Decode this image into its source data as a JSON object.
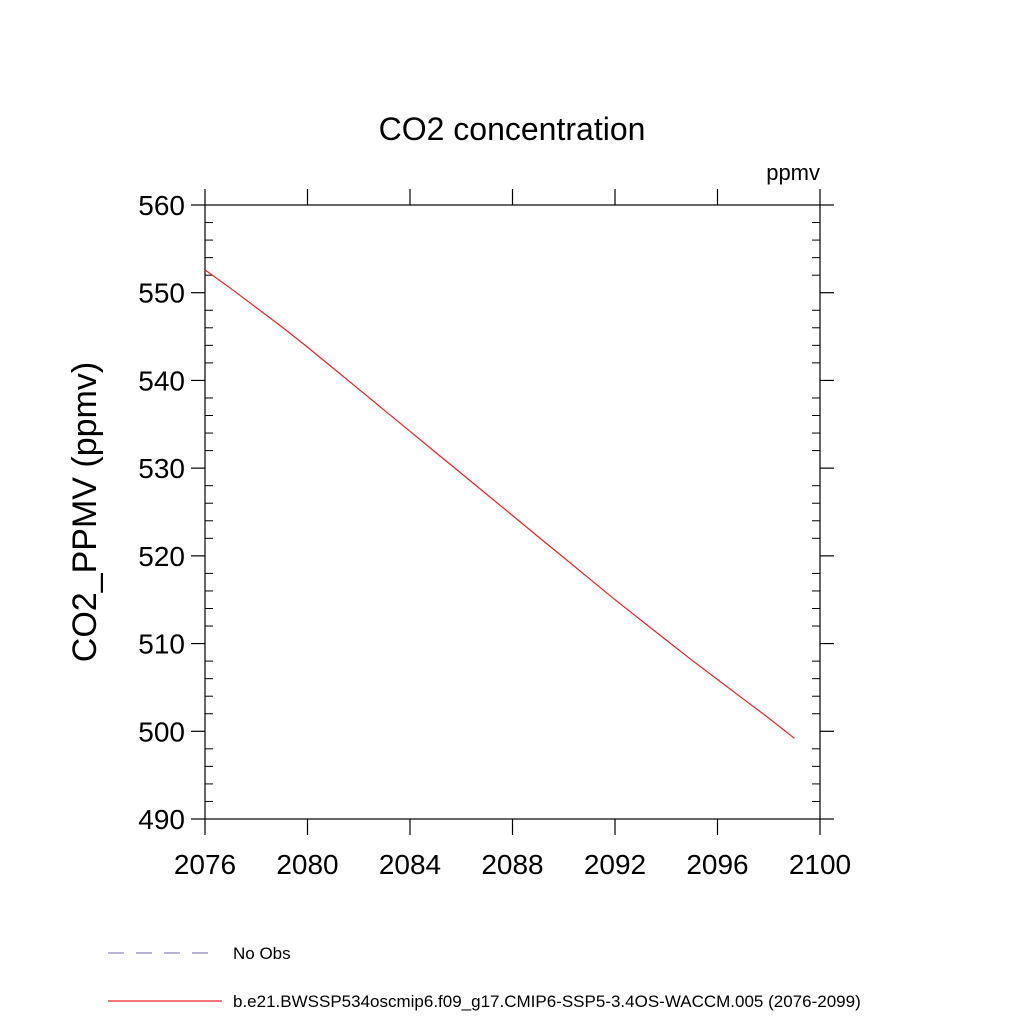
{
  "chart_data": {
    "type": "line",
    "title": "CO2 concentration",
    "units": "ppmv",
    "ylabel": "CO2_PPMV  (ppmv)",
    "xlabel": "",
    "xlim": [
      2076,
      2100
    ],
    "ylim": [
      490,
      560
    ],
    "xticks": [
      2076,
      2080,
      2084,
      2088,
      2092,
      2096,
      2100
    ],
    "yticks": [
      490,
      500,
      510,
      520,
      530,
      540,
      550,
      560
    ],
    "xtick_labels": [
      "2076",
      "2080",
      "2084",
      "2088",
      "2092",
      "2096",
      "2100"
    ],
    "ytick_labels": [
      "490",
      "500",
      "510",
      "520",
      "530",
      "540",
      "550",
      "560"
    ],
    "series": [
      {
        "name": "b.e21.BWSSP534oscmip6.f09_g17.CMIP6-SSP5-3.4OS-WACCM.005 (2076-2099)",
        "color": "#e8202a",
        "style": "solid",
        "x": [
          2076,
          2077,
          2078,
          2079,
          2080,
          2081,
          2082,
          2083,
          2084,
          2085,
          2086,
          2087,
          2088,
          2089,
          2090,
          2091,
          2092,
          2093,
          2094,
          2095,
          2096,
          2097,
          2098,
          2099
        ],
        "y": [
          552.6,
          550.5,
          548.3,
          546.1,
          543.8,
          541.4,
          539.0,
          536.6,
          534.2,
          531.8,
          529.4,
          527.0,
          524.6,
          522.2,
          519.8,
          517.4,
          515.0,
          512.7,
          510.4,
          508.1,
          505.9,
          503.7,
          501.5,
          499.2
        ]
      }
    ],
    "legend": [
      {
        "label": "No Obs",
        "color": "#8a84b8",
        "style": "dashed"
      },
      {
        "label": "b.e21.BWSSP534oscmip6.f09_g17.CMIP6-SSP5-3.4OS-WACCM.005 (2076-2099)",
        "color": "#e8202a",
        "style": "solid"
      }
    ],
    "legend_position": "bottom-left"
  }
}
